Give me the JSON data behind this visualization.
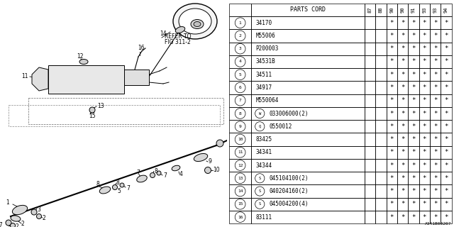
{
  "bg_color": "#ffffff",
  "col_headers": [
    "87",
    "88",
    "90",
    "90",
    "91",
    "93",
    "93",
    "94"
  ],
  "parts": [
    {
      "num": 1,
      "code": "34170",
      "prefix": ""
    },
    {
      "num": 2,
      "code": "M55006",
      "prefix": ""
    },
    {
      "num": 3,
      "code": "P200003",
      "prefix": ""
    },
    {
      "num": 4,
      "code": "34531B",
      "prefix": ""
    },
    {
      "num": 5,
      "code": "34511",
      "prefix": ""
    },
    {
      "num": 6,
      "code": "34917",
      "prefix": ""
    },
    {
      "num": 7,
      "code": "M550064",
      "prefix": ""
    },
    {
      "num": 8,
      "code": "033006000(2)",
      "prefix": "W"
    },
    {
      "num": 9,
      "code": "0550012",
      "prefix": "Q"
    },
    {
      "num": 10,
      "code": "83425",
      "prefix": ""
    },
    {
      "num": 11,
      "code": "34341",
      "prefix": ""
    },
    {
      "num": 12,
      "code": "34344",
      "prefix": ""
    },
    {
      "num": 13,
      "code": "045104100(2)",
      "prefix": "S"
    },
    {
      "num": 14,
      "code": "040204160(2)",
      "prefix": "S"
    },
    {
      "num": 15,
      "code": "045004200(4)",
      "prefix": "S"
    },
    {
      "num": 16,
      "code": "83111",
      "prefix": ""
    }
  ],
  "watermark": "A341B00207"
}
